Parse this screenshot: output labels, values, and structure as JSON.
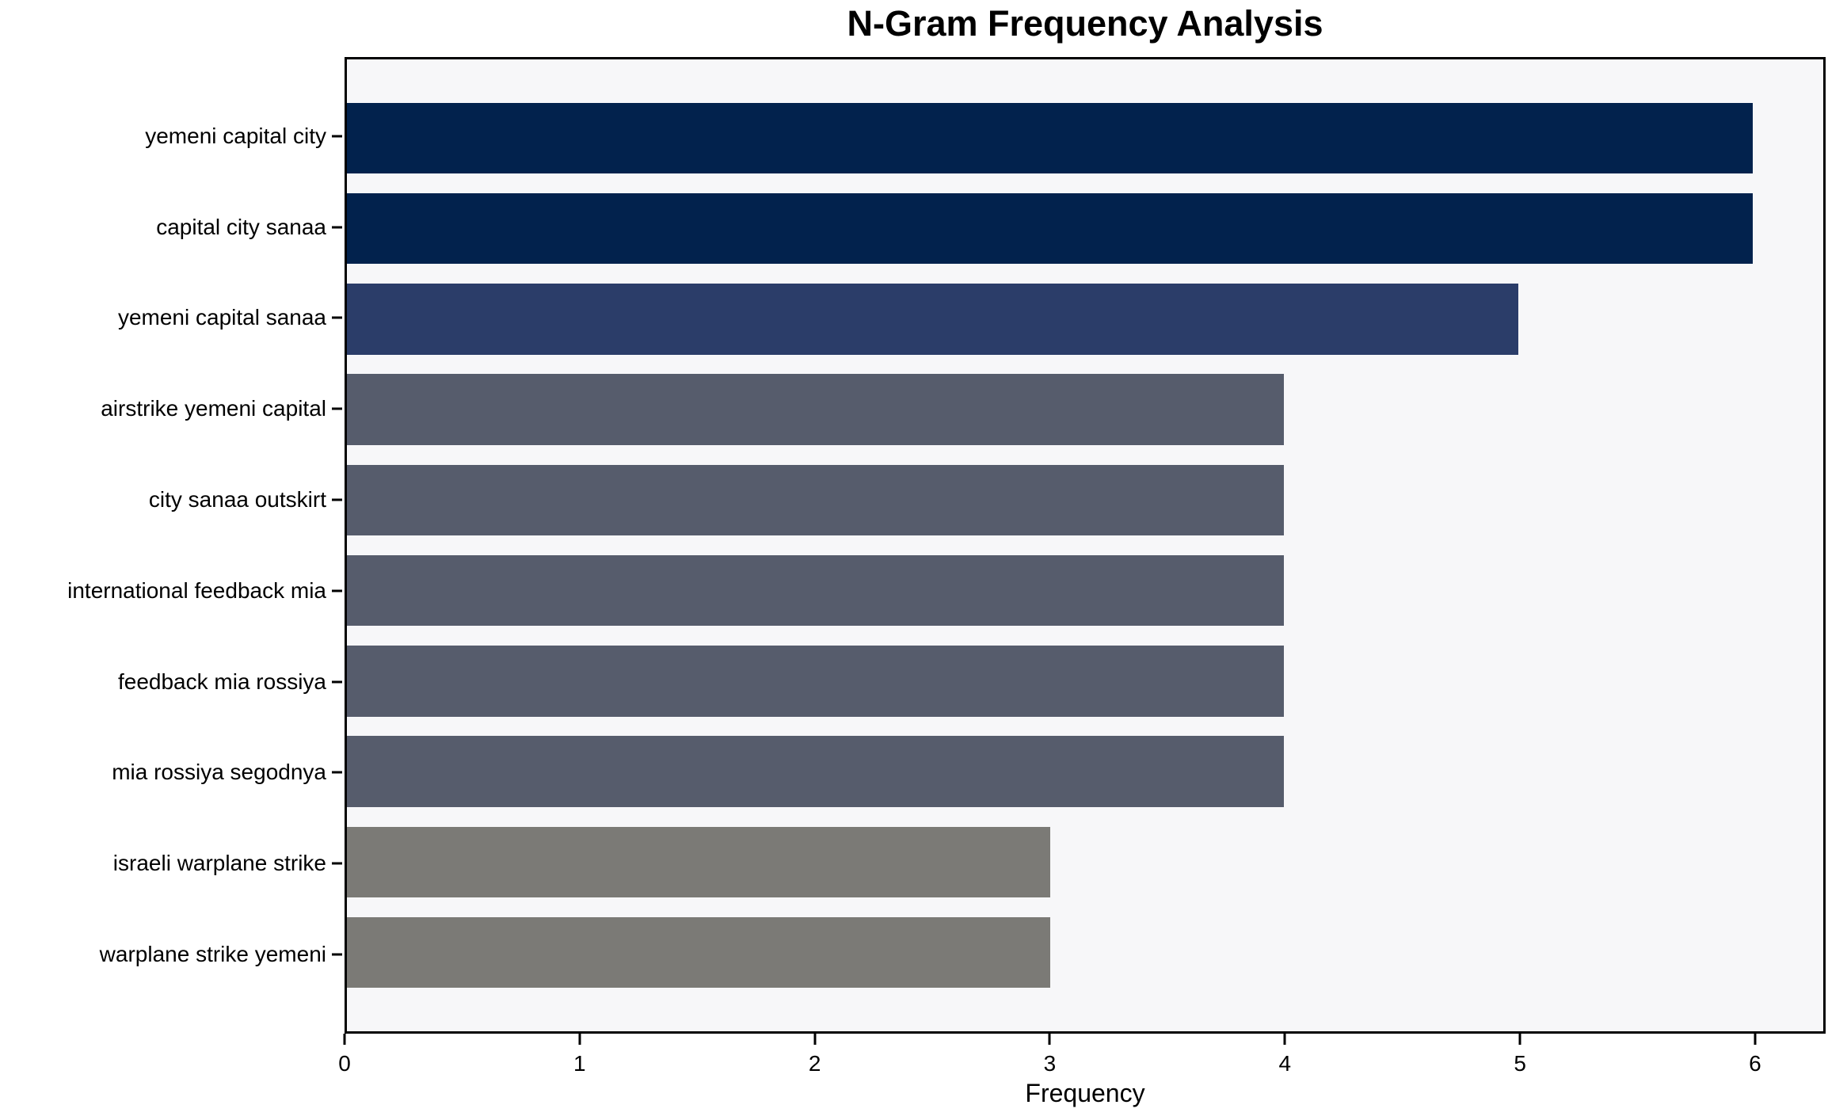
{
  "chart": {
    "title": "N-Gram Frequency Analysis",
    "xlabel": "Frequency"
  },
  "chart_data": {
    "type": "bar",
    "orientation": "horizontal",
    "title": "N-Gram Frequency Analysis",
    "xlabel": "Frequency",
    "ylabel": "",
    "categories": [
      "yemeni capital city",
      "capital city sanaa",
      "yemeni capital sanaa",
      "airstrike yemeni capital",
      "city sanaa outskirt",
      "international feedback mia",
      "feedback mia rossiya",
      "mia rossiya segodnya",
      "israeli warplane strike",
      "warplane strike yemeni"
    ],
    "values": [
      6,
      6,
      5,
      4,
      4,
      4,
      4,
      4,
      3,
      3
    ],
    "bar_colors": [
      "#02224d",
      "#02224d",
      "#2b3d69",
      "#565c6c",
      "#565c6c",
      "#565c6c",
      "#565c6c",
      "#565c6c",
      "#7b7a76",
      "#7b7a76"
    ],
    "x_ticks": [
      0,
      1,
      2,
      3,
      4,
      5,
      6
    ],
    "xlim": [
      0,
      6.3
    ],
    "grid": false,
    "legend": false,
    "plot_background": "#f7f7f9",
    "figure_background": "#ffffff"
  }
}
